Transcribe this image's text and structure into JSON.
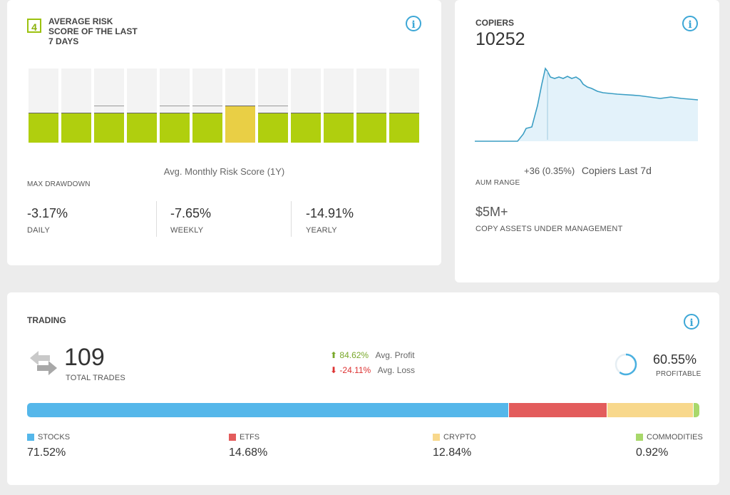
{
  "risk": {
    "score": "4",
    "title_line1": "AVERAGE RISK",
    "title_line2": "SCORE OF THE LAST",
    "title_line3": "7 DAYS",
    "monthly_label": "Avg. Monthly Risk Score (1Y)",
    "monthly_scores": [
      4,
      4,
      4,
      4,
      4,
      4,
      5,
      4,
      4,
      4,
      4,
      4
    ],
    "bar_colors": {
      "normal": "#b0cf0e",
      "highlight": "#e9cf45"
    },
    "max_drawdown_label": "MAX DRAWDOWN",
    "drawdowns": [
      {
        "value": "-3.17%",
        "label": "DAILY"
      },
      {
        "value": "-7.65%",
        "label": "WEEKLY"
      },
      {
        "value": "-14.91%",
        "label": "YEARLY"
      }
    ]
  },
  "copiers": {
    "title": "COPIERS",
    "count": "10252",
    "change": "+36 (0.35%)",
    "change_label": "Copiers Last 7d",
    "aum_range_label": "AUM RANGE",
    "aum_value": "$5M+",
    "aum_label": "COPY ASSETS UNDER MANAGEMENT",
    "line_color": "#3b9ec4"
  },
  "trading": {
    "title": "TRADING",
    "total_trades": "109",
    "total_trades_label": "TOTAL TRADES",
    "avg_profit": "84.62%",
    "avg_profit_label": "Avg. Profit",
    "avg_loss": "-24.11%",
    "avg_loss_label": "Avg. Loss",
    "profitable": "60.55%",
    "profitable_label": "PROFITABLE",
    "profitable_fraction": 0.6055,
    "allocation": [
      {
        "label": "STOCKS",
        "value": "71.52%",
        "pct": 71.52,
        "color": "#55b7ea"
      },
      {
        "label": "ETFS",
        "value": "14.68%",
        "pct": 14.68,
        "color": "#e35c5c"
      },
      {
        "label": "CRYPTO",
        "value": "12.84%",
        "pct": 12.84,
        "color": "#f8d88c"
      },
      {
        "label": "COMMODITIES",
        "value": "0.92%",
        "pct": 0.92,
        "color": "#a8d86b"
      }
    ]
  }
}
